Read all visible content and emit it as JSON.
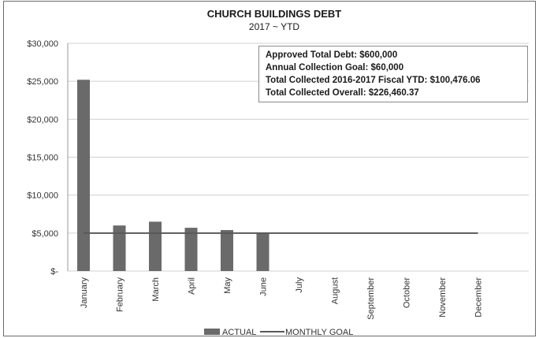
{
  "chart_data": {
    "type": "bar",
    "title": "CHURCH BUILDINGS DEBT",
    "subtitle": "2017 ~ YTD",
    "categories": [
      "January",
      "February",
      "March",
      "April",
      "May",
      "June",
      "July",
      "August",
      "September",
      "October",
      "November",
      "December"
    ],
    "series": [
      {
        "name": "ACTUAL",
        "type": "bar",
        "values": [
          25200,
          6000,
          6500,
          5700,
          5400,
          5000,
          null,
          null,
          null,
          null,
          null,
          null
        ]
      },
      {
        "name": "MONTHLY GOAL",
        "type": "line",
        "values": [
          5000,
          5000,
          5000,
          5000,
          5000,
          5000,
          5000,
          5000,
          5000,
          5000,
          5000,
          5000
        ]
      }
    ],
    "yticks": [
      "$-",
      "$5,000",
      "$10,000",
      "$15,000",
      "$20,000",
      "$25,000",
      "$30,000"
    ],
    "ylim": [
      0,
      30000
    ],
    "grid": true,
    "legend": "bottom",
    "colors": {
      "bar": "#6a6a6a",
      "line": "#595959",
      "grid": "#d0d0d0"
    }
  },
  "info_box": {
    "lines": [
      "Approved Total Debt:   $600,000",
      "Annual Collection Goal:  $60,000",
      "Total Collected 2016-2017 Fiscal YTD:  $100,476.06",
      "Total Collected Overall:  $226,460.37"
    ]
  }
}
